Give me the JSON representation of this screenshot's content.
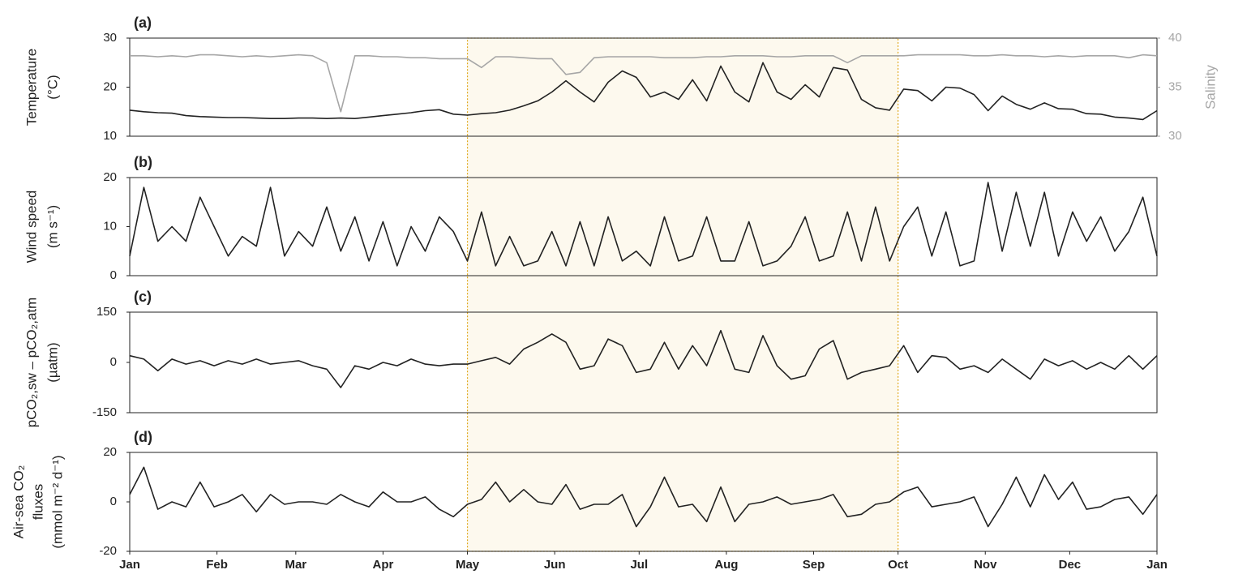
{
  "highlight": {
    "x": [
      120,
      273
    ],
    "fill": "#fdf9ee",
    "edge": "#e0a81c"
  },
  "chart_data": [
    {
      "type": "line",
      "panel_label": "(a)",
      "ylabel": [
        "Temperature",
        "(°C)"
      ],
      "y2label": "Salinity",
      "xlim": [
        0,
        365
      ],
      "ylim": [
        10,
        30
      ],
      "yticks": [
        10,
        20,
        30
      ],
      "y2lim": [
        30,
        40
      ],
      "y2ticks": [
        30,
        35,
        40
      ],
      "x": [
        0,
        5,
        10,
        15,
        20,
        25,
        30,
        35,
        40,
        45,
        50,
        55,
        60,
        65,
        70,
        75,
        80,
        85,
        90,
        95,
        100,
        105,
        110,
        115,
        120,
        125,
        130,
        135,
        140,
        145,
        150,
        155,
        160,
        165,
        170,
        175,
        180,
        185,
        190,
        195,
        200,
        205,
        210,
        215,
        220,
        225,
        230,
        235,
        240,
        245,
        250,
        255,
        260,
        265,
        270,
        275,
        280,
        285,
        290,
        295,
        300,
        305,
        310,
        315,
        320,
        325,
        330,
        335,
        340,
        345,
        350,
        355,
        360,
        365
      ],
      "series": [
        {
          "name": "Temperature",
          "color": "#222222",
          "values": [
            15.3,
            15,
            14.8,
            14.7,
            14.2,
            14,
            13.9,
            13.8,
            13.8,
            13.7,
            13.6,
            13.6,
            13.7,
            13.7,
            13.6,
            13.7,
            13.6,
            13.9,
            14.2,
            14.5,
            14.8,
            15.2,
            15.4,
            14.5,
            14.3,
            14.6,
            14.8,
            15.3,
            16.2,
            17.2,
            19,
            21.3,
            19,
            17,
            21,
            23.3,
            22,
            18,
            19,
            17.5,
            21.5,
            17.2,
            24.3,
            19,
            17,
            25,
            19,
            17.5,
            20.5,
            18,
            24,
            23.5,
            17.5,
            15.8,
            15.3,
            19.6,
            19.3,
            17.2,
            20,
            19.8,
            18.5,
            15.2,
            18.2,
            16.5,
            15.5,
            16.8,
            15.6,
            15.5,
            14.6,
            14.5,
            13.9,
            13.7,
            13.4,
            15.2
          ]
        },
        {
          "name": "Salinity",
          "color": "#a6a6a6",
          "axis": "y2",
          "values": [
            38.2,
            38.2,
            38.1,
            38.2,
            38.1,
            38.3,
            38.3,
            38.2,
            38.1,
            38.2,
            38.1,
            38.2,
            38.3,
            38.2,
            37.5,
            32.5,
            38.2,
            38.2,
            38.1,
            38.1,
            38,
            38,
            37.9,
            37.9,
            37.9,
            37,
            38.1,
            38.1,
            38,
            37.9,
            37.9,
            36.3,
            36.5,
            38,
            38.1,
            38.1,
            38.1,
            38.1,
            38,
            38,
            38,
            38.1,
            38.1,
            38.2,
            38.2,
            38.2,
            38.1,
            38.1,
            38.2,
            38.2,
            38.2,
            37.5,
            38.2,
            38.2,
            38.2,
            38.2,
            38.3,
            38.3,
            38.3,
            38.3,
            38.2,
            38.2,
            38.3,
            38.2,
            38.2,
            38.1,
            38.2,
            38.1,
            38.2,
            38.2,
            38.2,
            38,
            38.3,
            38.2
          ]
        }
      ]
    },
    {
      "type": "line",
      "panel_label": "(b)",
      "ylabel": [
        "Wind speed",
        "(m s⁻¹)"
      ],
      "xlim": [
        0,
        365
      ],
      "ylim": [
        0,
        20
      ],
      "yticks": [
        0,
        10,
        20
      ],
      "x": [
        0,
        5,
        10,
        15,
        20,
        25,
        30,
        35,
        40,
        45,
        50,
        55,
        60,
        65,
        70,
        75,
        80,
        85,
        90,
        95,
        100,
        105,
        110,
        115,
        120,
        125,
        130,
        135,
        140,
        145,
        150,
        155,
        160,
        165,
        170,
        175,
        180,
        185,
        190,
        195,
        200,
        205,
        210,
        215,
        220,
        225,
        230,
        235,
        240,
        245,
        250,
        255,
        260,
        265,
        270,
        275,
        280,
        285,
        290,
        295,
        300,
        305,
        310,
        315,
        320,
        325,
        330,
        335,
        340,
        345,
        350,
        355,
        360,
        365
      ],
      "series": [
        {
          "name": "Wind speed",
          "color": "#222222",
          "values": [
            4,
            18,
            7,
            10,
            7,
            16,
            10,
            4,
            8,
            6,
            18,
            4,
            9,
            6,
            14,
            5,
            12,
            3,
            11,
            2,
            10,
            5,
            12,
            9,
            3,
            13,
            2,
            8,
            2,
            3,
            9,
            2,
            11,
            2,
            12,
            3,
            5,
            2,
            12,
            3,
            4,
            12,
            3,
            3,
            11,
            2,
            3,
            6,
            12,
            3,
            4,
            13,
            3,
            14,
            3,
            10,
            14,
            4,
            13,
            2,
            3,
            19,
            5,
            17,
            6,
            17,
            4,
            13,
            7,
            12,
            5,
            9,
            16,
            4
          ]
        }
      ]
    },
    {
      "type": "line",
      "panel_label": "(c)",
      "ylabel": [
        "pCO₂,sw – pCO₂,atm",
        "(µatm)"
      ],
      "xlim": [
        0,
        365
      ],
      "ylim": [
        -150,
        150
      ],
      "yticks": [
        -150,
        0,
        150
      ],
      "x": [
        0,
        5,
        10,
        15,
        20,
        25,
        30,
        35,
        40,
        45,
        50,
        55,
        60,
        65,
        70,
        75,
        80,
        85,
        90,
        95,
        100,
        105,
        110,
        115,
        120,
        125,
        130,
        135,
        140,
        145,
        150,
        155,
        160,
        165,
        170,
        175,
        180,
        185,
        190,
        195,
        200,
        205,
        210,
        215,
        220,
        225,
        230,
        235,
        240,
        245,
        250,
        255,
        260,
        265,
        270,
        275,
        280,
        285,
        290,
        295,
        300,
        305,
        310,
        315,
        320,
        325,
        330,
        335,
        340,
        345,
        350,
        355,
        360,
        365
      ],
      "series": [
        {
          "name": "pCO2 difference",
          "color": "#222222",
          "values": [
            20,
            10,
            -25,
            10,
            -5,
            5,
            -10,
            5,
            -5,
            10,
            -5,
            0,
            5,
            -10,
            -20,
            -75,
            -10,
            -20,
            0,
            -10,
            10,
            -5,
            -10,
            -5,
            -5,
            5,
            15,
            -5,
            40,
            60,
            85,
            60,
            -20,
            -10,
            70,
            50,
            -30,
            -20,
            60,
            -20,
            50,
            -10,
            95,
            -20,
            -30,
            80,
            -10,
            -50,
            -40,
            40,
            65,
            -50,
            -30,
            -20,
            -10,
            50,
            -30,
            20,
            15,
            -20,
            -10,
            -30,
            10,
            -20,
            -50,
            10,
            -10,
            5,
            -20,
            0,
            -20,
            20,
            -20,
            20
          ]
        }
      ]
    },
    {
      "type": "line",
      "panel_label": "(d)",
      "ylabel": [
        "Air-sea CO₂",
        "fluxes",
        "(mmol m⁻² d⁻¹)"
      ],
      "xlim": [
        0,
        365
      ],
      "ylim": [
        -20,
        20
      ],
      "yticks": [
        -20,
        0,
        20
      ],
      "xticks": [
        {
          "value": 0,
          "label": "Jan"
        },
        {
          "value": 31,
          "label": "Feb"
        },
        {
          "value": 59,
          "label": "Mar"
        },
        {
          "value": 90,
          "label": "Apr"
        },
        {
          "value": 120,
          "label": "May"
        },
        {
          "value": 151,
          "label": "Jun"
        },
        {
          "value": 181,
          "label": "Jul"
        },
        {
          "value": 212,
          "label": "Aug"
        },
        {
          "value": 243,
          "label": "Sep"
        },
        {
          "value": 273,
          "label": "Oct"
        },
        {
          "value": 304,
          "label": "Nov"
        },
        {
          "value": 334,
          "label": "Dec"
        },
        {
          "value": 365,
          "label": "Jan"
        }
      ],
      "x": [
        0,
        5,
        10,
        15,
        20,
        25,
        30,
        35,
        40,
        45,
        50,
        55,
        60,
        65,
        70,
        75,
        80,
        85,
        90,
        95,
        100,
        105,
        110,
        115,
        120,
        125,
        130,
        135,
        140,
        145,
        150,
        155,
        160,
        165,
        170,
        175,
        180,
        185,
        190,
        195,
        200,
        205,
        210,
        215,
        220,
        225,
        230,
        235,
        240,
        245,
        250,
        255,
        260,
        265,
        270,
        275,
        280,
        285,
        290,
        295,
        300,
        305,
        310,
        315,
        320,
        325,
        330,
        335,
        340,
        345,
        350,
        355,
        360,
        365
      ],
      "series": [
        {
          "name": "Air-sea CO2 flux",
          "color": "#222222",
          "values": [
            3,
            14,
            -3,
            0,
            -2,
            8,
            -2,
            0,
            3,
            -4,
            3,
            -1,
            0,
            0,
            -1,
            3,
            0,
            -2,
            4,
            0,
            0,
            2,
            -3,
            -6,
            -1,
            1,
            8,
            0,
            5,
            0,
            -1,
            7,
            -3,
            -1,
            -1,
            3,
            -10,
            -2,
            10,
            -2,
            -1,
            -8,
            6,
            -8,
            -1,
            0,
            2,
            -1,
            0,
            1,
            3,
            -6,
            -5,
            -1,
            0,
            4,
            6,
            -2,
            -1,
            0,
            2,
            -10,
            -1,
            10,
            -2,
            11,
            1,
            8,
            -3,
            -2,
            1,
            2,
            -5,
            3
          ]
        }
      ]
    }
  ]
}
